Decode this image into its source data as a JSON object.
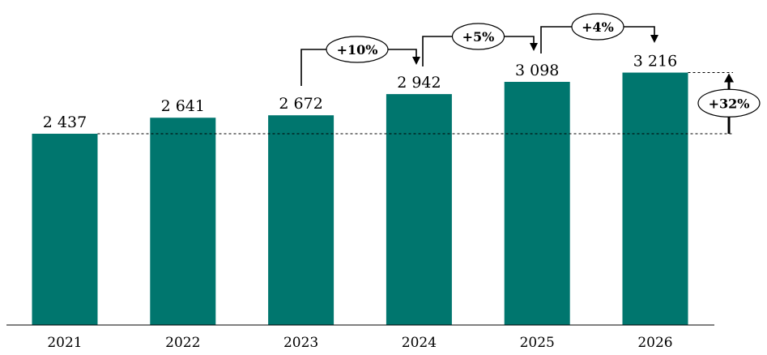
{
  "chart_data": {
    "type": "bar",
    "categories": [
      "2021",
      "2022",
      "2023",
      "2024",
      "2025",
      "2026"
    ],
    "values": [
      2437,
      2641,
      2672,
      2942,
      3098,
      3216
    ],
    "value_labels": [
      "2 437",
      "2 641",
      "2 672",
      "2 942",
      "3 098",
      "3 216"
    ],
    "ylim": [
      0,
      3500
    ],
    "bar_color": "#00766E",
    "grid": false,
    "title": "",
    "xlabel": "",
    "ylabel": "",
    "annotations": [
      {
        "from": "2023",
        "to": "2024",
        "label": "+10%"
      },
      {
        "from": "2024",
        "to": "2025",
        "label": "+5%"
      },
      {
        "from": "2025",
        "to": "2026",
        "label": "+4%"
      }
    ],
    "total_change": {
      "from": "2021",
      "to": "2026",
      "label": "+32%"
    }
  }
}
